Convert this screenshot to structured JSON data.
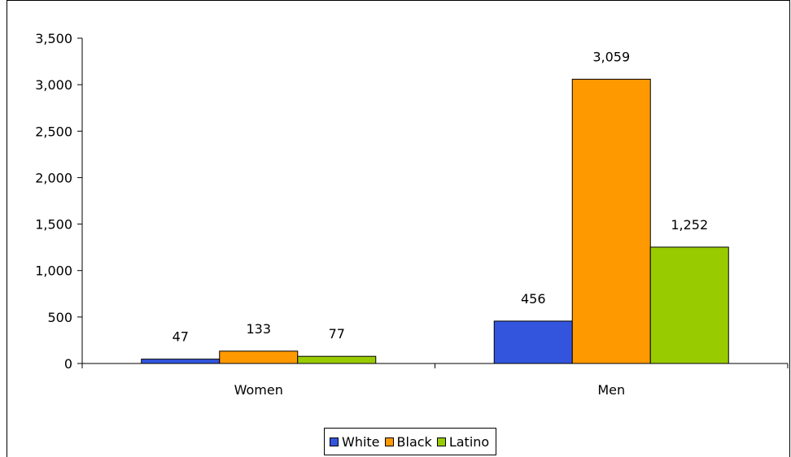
{
  "chart_data": {
    "type": "bar",
    "categories": [
      "Women",
      "Men"
    ],
    "series": [
      {
        "name": "White",
        "color": "#3355dd",
        "values": [
          47,
          456
        ]
      },
      {
        "name": "Black",
        "color": "#ff9900",
        "values": [
          133,
          3059
        ]
      },
      {
        "name": "Latino",
        "color": "#99cc00",
        "values": [
          77,
          1252
        ]
      }
    ],
    "data_labels": {
      "White": [
        "47",
        "456"
      ],
      "Black": [
        "133",
        "3,059"
      ],
      "Latino": [
        "77",
        "1,252"
      ]
    },
    "y_ticks": [
      "0",
      "500",
      "1,000",
      "1,500",
      "2,000",
      "2,500",
      "3,000",
      "3,500"
    ],
    "ylim": [
      0,
      3500
    ],
    "title": "",
    "xlabel": "",
    "ylabel": "",
    "grid": false,
    "legend_position": "bottom"
  },
  "legend": {
    "items": [
      {
        "label": "White",
        "color": "#3355dd"
      },
      {
        "label": "Black",
        "color": "#ff9900"
      },
      {
        "label": "Latino",
        "color": "#99cc00"
      }
    ]
  }
}
